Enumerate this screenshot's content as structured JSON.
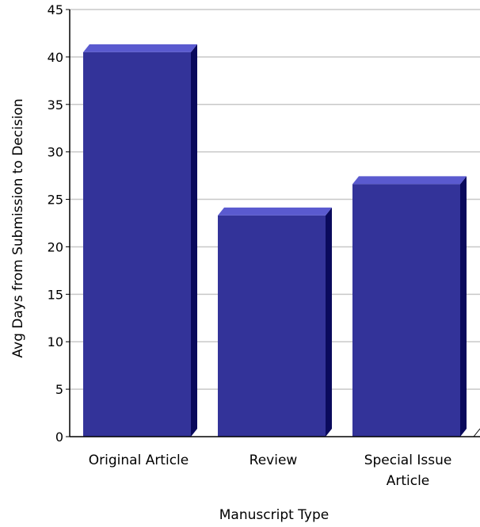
{
  "chart_data": {
    "type": "bar",
    "categories": [
      "Original Article",
      "Review",
      "Special Issue Article"
    ],
    "category_label_lines": [
      [
        "Original Article"
      ],
      [
        "Review"
      ],
      [
        "Special Issue",
        "Article"
      ]
    ],
    "values": [
      40.5,
      23.3,
      26.6
    ],
    "xlabel": "Manuscript Type",
    "ylabel": "Avg Days from Submission to Decision",
    "ylim": [
      0,
      45
    ],
    "yticks": [
      0,
      5,
      10,
      15,
      20,
      25,
      30,
      35,
      40,
      45
    ],
    "grid": true,
    "style": "3d-bar",
    "colors": {
      "bar_front": "#333399",
      "bar_top": "#5a5acf",
      "bar_side": "#0a0a5c",
      "grid": "#c8c8c8",
      "axis": "#000000"
    }
  }
}
